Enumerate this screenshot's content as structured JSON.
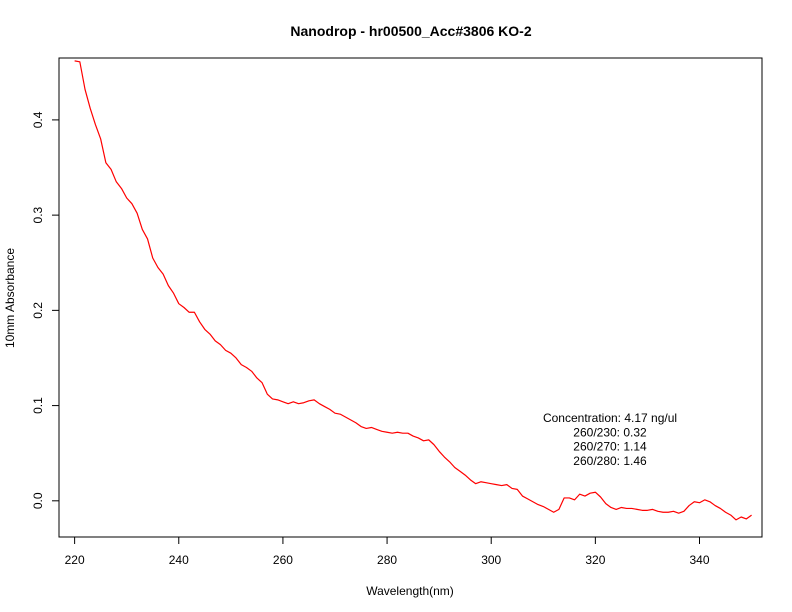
{
  "chart_data": {
    "type": "line",
    "title": "Nanodrop - hr00500_Acc#3806  KO-2",
    "xlabel": "Wavelength(nm)",
    "ylabel": "10mm Absorbance",
    "xlim": [
      217,
      352
    ],
    "ylim": [
      -0.038,
      0.465
    ],
    "x_ticks": [
      220,
      240,
      260,
      280,
      300,
      320,
      340
    ],
    "x_tick_labels": [
      "220",
      "240",
      "260",
      "280",
      "300",
      "320",
      "340"
    ],
    "y_ticks": [
      0.0,
      0.1,
      0.2,
      0.3,
      0.4
    ],
    "y_tick_labels": [
      "0.0",
      "0.1",
      "0.2",
      "0.3",
      "0.4"
    ],
    "grid": false,
    "legend": "none",
    "series_color": "#ff0000",
    "annotations": [
      "Concentration: 4.17 ng/ul",
      "260/230: 0.32",
      "260/270: 1.14",
      "260/280: 1.46"
    ],
    "series": [
      {
        "x": [
          220,
          221,
          222,
          223,
          224,
          225,
          226,
          227,
          228,
          229,
          230,
          231,
          232,
          233,
          234,
          235,
          236,
          237,
          238,
          239,
          240,
          241,
          242,
          243,
          244,
          245,
          246,
          247,
          248,
          249,
          250,
          251,
          252,
          253,
          254,
          255,
          256,
          257,
          258,
          259,
          260,
          261,
          262,
          263,
          264,
          265,
          266,
          267,
          268,
          269,
          270,
          271,
          272,
          273,
          274,
          275,
          276,
          277,
          278,
          279,
          280,
          281,
          282,
          283,
          284,
          285,
          286,
          287,
          288,
          289,
          290,
          291,
          292,
          293,
          294,
          295,
          296,
          297,
          298,
          299,
          300,
          301,
          302,
          303,
          304,
          305,
          306,
          307,
          308,
          309,
          310,
          311,
          312,
          313,
          314,
          315,
          316,
          317,
          318,
          319,
          320,
          321,
          322,
          323,
          324,
          325,
          326,
          327,
          328,
          329,
          330,
          331,
          332,
          333,
          334,
          335,
          336,
          337,
          338,
          339,
          340,
          341,
          342,
          343,
          344,
          345,
          346,
          347,
          348,
          349,
          350
        ],
        "y": [
          0.462,
          0.461,
          0.432,
          0.412,
          0.395,
          0.38,
          0.355,
          0.348,
          0.335,
          0.328,
          0.318,
          0.312,
          0.302,
          0.285,
          0.275,
          0.255,
          0.245,
          0.238,
          0.226,
          0.218,
          0.207,
          0.203,
          0.198,
          0.198,
          0.188,
          0.18,
          0.175,
          0.168,
          0.164,
          0.158,
          0.155,
          0.15,
          0.143,
          0.14,
          0.136,
          0.129,
          0.124,
          0.112,
          0.107,
          0.106,
          0.104,
          0.102,
          0.104,
          0.102,
          0.103,
          0.105,
          0.106,
          0.102,
          0.099,
          0.096,
          0.092,
          0.091,
          0.088,
          0.085,
          0.082,
          0.078,
          0.076,
          0.077,
          0.075,
          0.073,
          0.072,
          0.071,
          0.072,
          0.071,
          0.071,
          0.068,
          0.066,
          0.063,
          0.064,
          0.059,
          0.052,
          0.046,
          0.041,
          0.035,
          0.031,
          0.027,
          0.022,
          0.018,
          0.02,
          0.019,
          0.018,
          0.017,
          0.016,
          0.017,
          0.013,
          0.012,
          0.005,
          0.002,
          -0.001,
          -0.004,
          -0.006,
          -0.009,
          -0.012,
          -0.009,
          0.003,
          0.003,
          0.001,
          0.007,
          0.005,
          0.008,
          0.009,
          0.004,
          -0.003,
          -0.007,
          -0.009,
          -0.007,
          -0.008,
          -0.008,
          -0.009,
          -0.01,
          -0.01,
          -0.009,
          -0.011,
          -0.012,
          -0.012,
          -0.011,
          -0.013,
          -0.011,
          -0.005,
          -0.001,
          -0.002,
          0.001,
          -0.001,
          -0.005,
          -0.008,
          -0.012,
          -0.015,
          -0.02,
          -0.017,
          -0.019,
          -0.015
        ]
      }
    ]
  }
}
